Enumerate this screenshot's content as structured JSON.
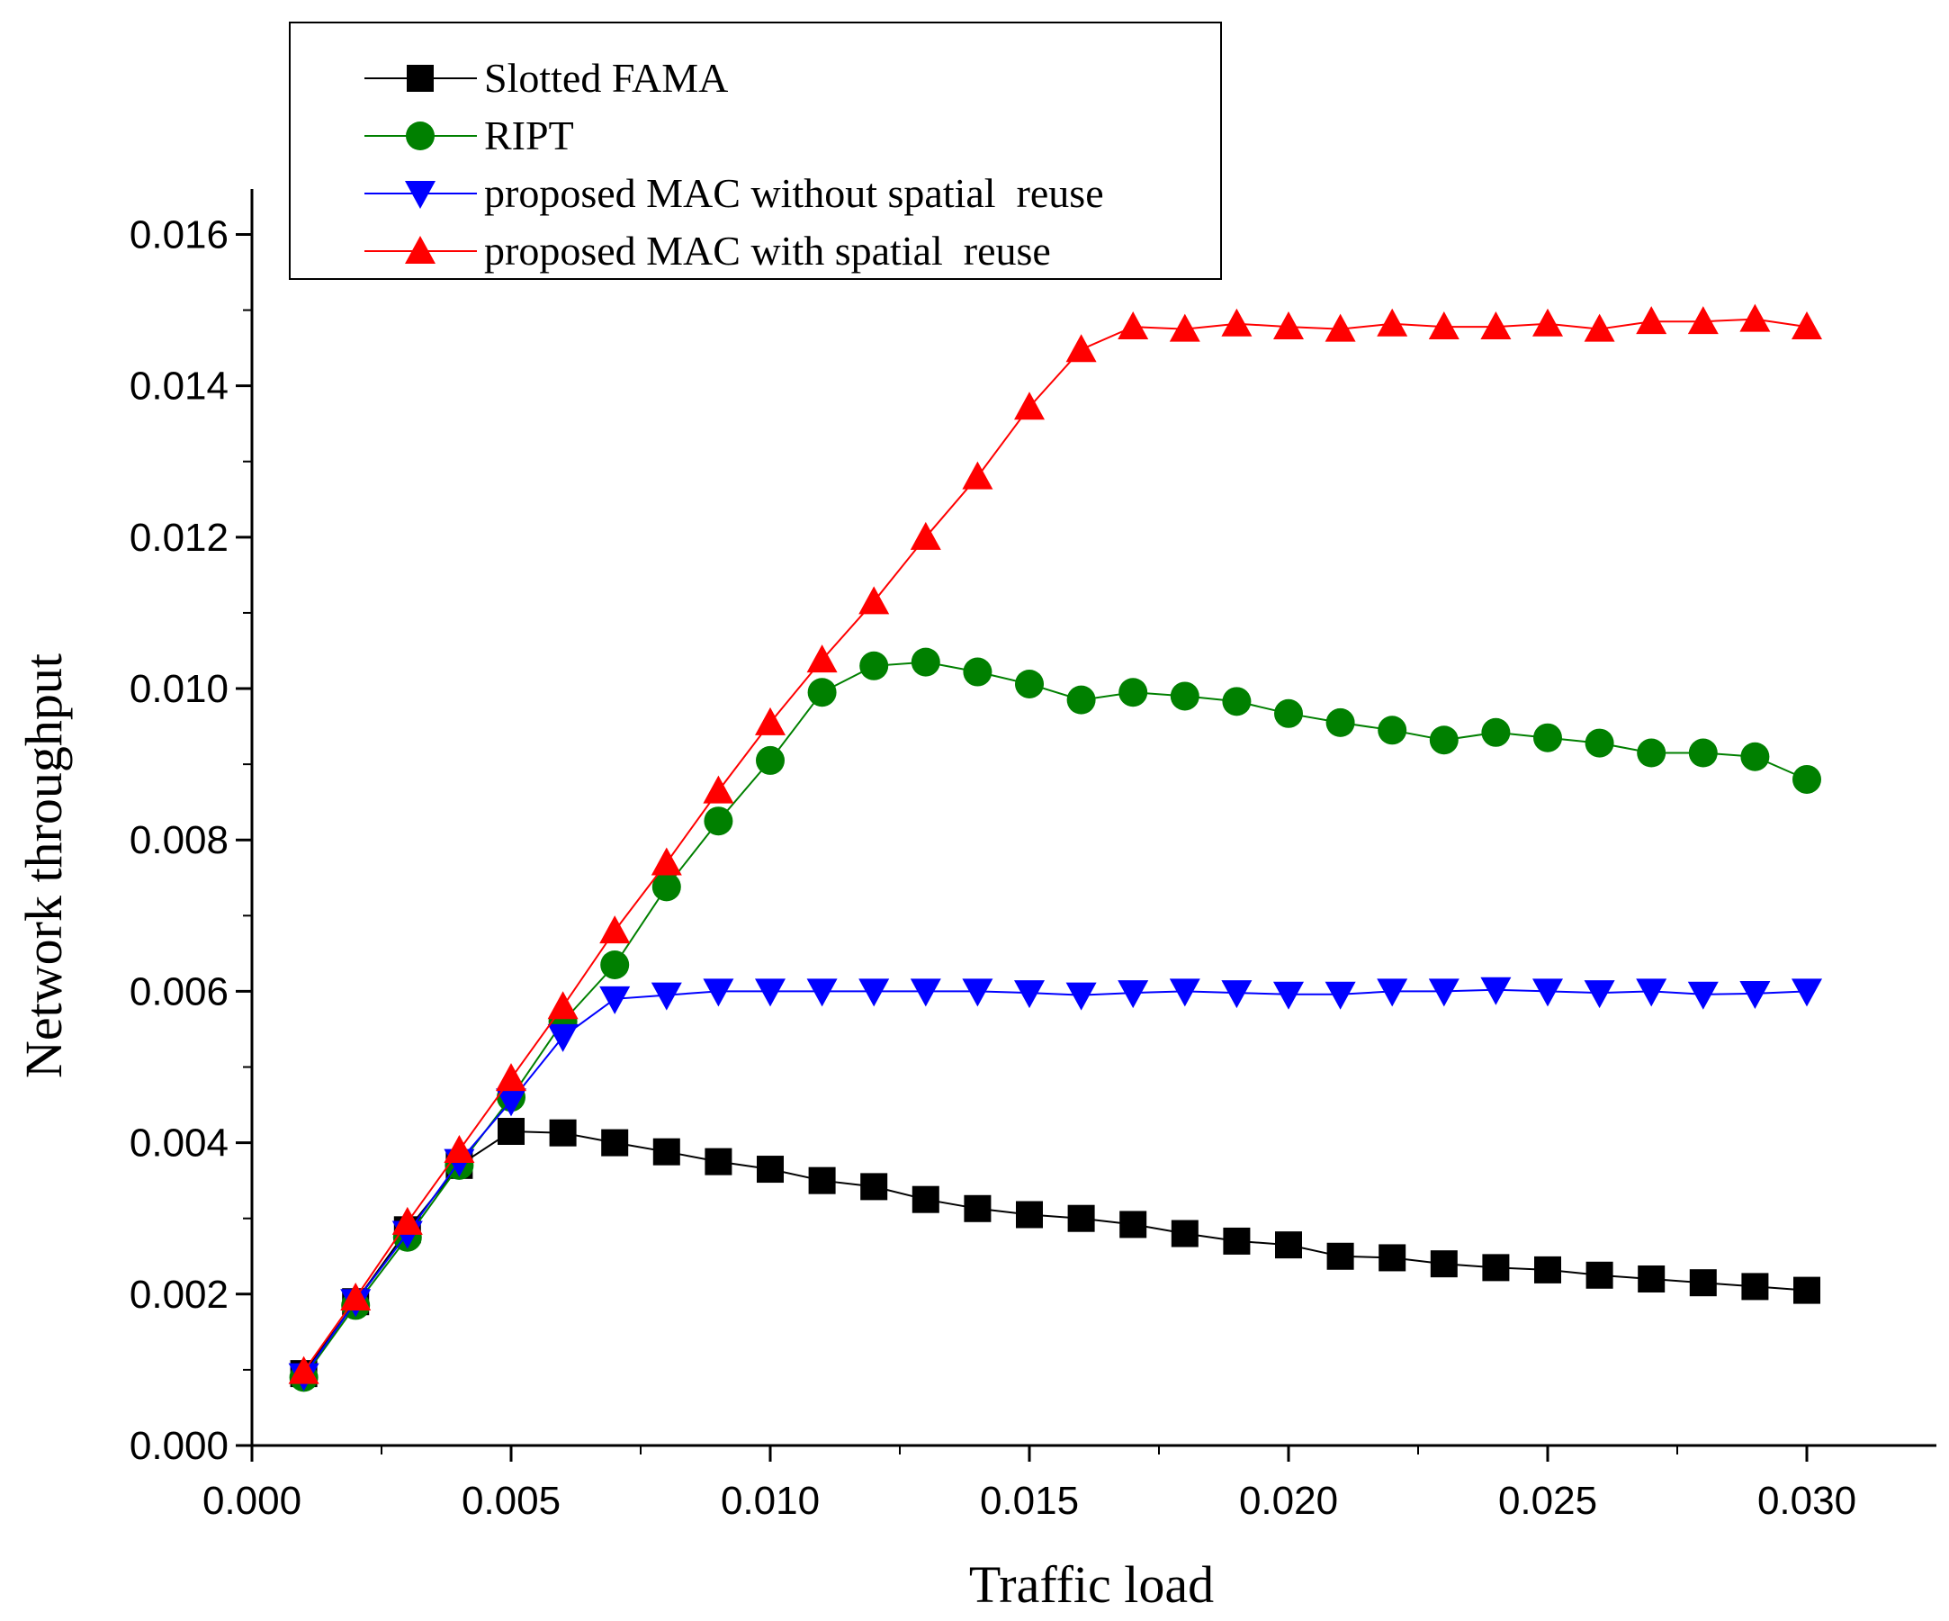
{
  "chart_data": {
    "type": "line",
    "title": "",
    "xlabel": "Traffic load",
    "ylabel": "Network throughput",
    "xlim": [
      0.0,
      0.0325
    ],
    "ylim": [
      0.0,
      0.0166
    ],
    "x_ticks": [
      "0.000",
      "0.005",
      "0.010",
      "0.015",
      "0.020",
      "0.025",
      "0.030"
    ],
    "y_ticks": [
      "0.000",
      "0.002",
      "0.004",
      "0.006",
      "0.008",
      "0.010",
      "0.012",
      "0.014",
      "0.016"
    ],
    "legend_position": "top-left",
    "grid": false,
    "x": [
      0.001,
      0.002,
      0.003,
      0.004,
      0.005,
      0.006,
      0.007,
      0.008,
      0.009,
      0.01,
      0.011,
      0.012,
      0.013,
      0.014,
      0.015,
      0.016,
      0.017,
      0.018,
      0.019,
      0.02,
      0.021,
      0.022,
      0.023,
      0.024,
      0.025,
      0.026,
      0.027,
      0.028,
      0.029,
      0.03
    ],
    "series": [
      {
        "name": "Slotted FAMA",
        "color": "#000000",
        "marker": "square",
        "values": [
          0.00095,
          0.0019,
          0.00285,
          0.0037,
          0.00415,
          0.00413,
          0.004,
          0.00388,
          0.00375,
          0.00365,
          0.0035,
          0.00342,
          0.00325,
          0.00313,
          0.00305,
          0.003,
          0.00292,
          0.0028,
          0.0027,
          0.00265,
          0.0025,
          0.00248,
          0.0024,
          0.00235,
          0.00232,
          0.00225,
          0.0022,
          0.00215,
          0.0021,
          0.00205
        ]
      },
      {
        "name": "RIPT",
        "color": "#008000",
        "marker": "circle",
        "values": [
          0.0009,
          0.00185,
          0.00275,
          0.0037,
          0.0046,
          0.0056,
          0.00635,
          0.00738,
          0.00825,
          0.00905,
          0.00995,
          0.0103,
          0.01035,
          0.01022,
          0.01006,
          0.00985,
          0.00995,
          0.0099,
          0.00983,
          0.00967,
          0.00955,
          0.00945,
          0.00932,
          0.00942,
          0.00935,
          0.00928,
          0.00915,
          0.00915,
          0.0091,
          0.0088
        ]
      },
      {
        "name": "proposed MAC without spatial  reuse",
        "color": "#0000ff",
        "marker": "triangle-down",
        "values": [
          0.00092,
          0.0019,
          0.0028,
          0.00375,
          0.00455,
          0.0054,
          0.0059,
          0.00595,
          0.006,
          0.006,
          0.006,
          0.006,
          0.006,
          0.006,
          0.00598,
          0.00595,
          0.00598,
          0.006,
          0.00598,
          0.00596,
          0.00596,
          0.006,
          0.006,
          0.00602,
          0.006,
          0.00598,
          0.006,
          0.00596,
          0.00597,
          0.006
        ]
      },
      {
        "name": "proposed MAC with spatial  reuse",
        "color": "#ff0000",
        "marker": "triangle-up",
        "values": [
          0.00098,
          0.00195,
          0.00295,
          0.0039,
          0.00485,
          0.0058,
          0.0068,
          0.0077,
          0.00865,
          0.00955,
          0.01038,
          0.01115,
          0.012,
          0.0128,
          0.01372,
          0.01448,
          0.01478,
          0.01475,
          0.01482,
          0.01478,
          0.01475,
          0.01482,
          0.01478,
          0.01478,
          0.01482,
          0.01475,
          0.01485,
          0.01485,
          0.01488,
          0.01478
        ]
      }
    ]
  }
}
